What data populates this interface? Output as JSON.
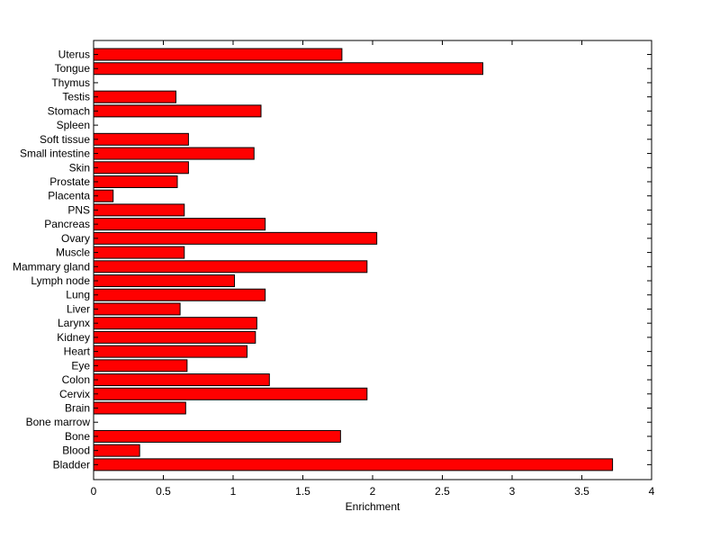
{
  "chart_data": {
    "type": "bar",
    "orientation": "horizontal",
    "xlabel": "Enrichment",
    "ylabel": "",
    "xlim": [
      0,
      4
    ],
    "xticks": [
      "0",
      "0.5",
      "1",
      "1.5",
      "2",
      "2.5",
      "3",
      "3.5",
      "4"
    ],
    "grid": false,
    "bar_color": "#ff0000",
    "categories": [
      "Uterus",
      "Tongue",
      "Thymus",
      "Testis",
      "Stomach",
      "Spleen",
      "Soft tissue",
      "Small intestine",
      "Skin",
      "Prostate",
      "Placenta",
      "PNS",
      "Pancreas",
      "Ovary",
      "Muscle",
      "Mammary gland",
      "Lymph node",
      "Lung",
      "Liver",
      "Larynx",
      "Kidney",
      "Heart",
      "Eye",
      "Colon",
      "Cervix",
      "Brain",
      "Bone marrow",
      "Bone",
      "Blood",
      "Bladder"
    ],
    "values": [
      1.78,
      2.79,
      0,
      0.59,
      1.2,
      0,
      0.68,
      1.15,
      0.68,
      0.6,
      0.14,
      0.65,
      1.23,
      2.03,
      0.65,
      1.96,
      1.01,
      1.23,
      0.62,
      1.17,
      1.16,
      1.1,
      0.67,
      1.26,
      1.96,
      0.66,
      0,
      1.77,
      0.33,
      3.72
    ]
  }
}
